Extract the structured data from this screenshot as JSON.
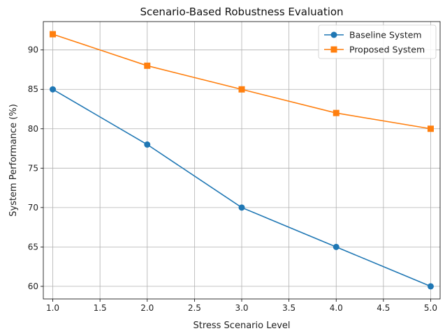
{
  "chart_data": {
    "type": "line",
    "title": "Scenario-Based Robustness Evaluation",
    "xlabel": "Stress Scenario Level",
    "ylabel": "System Performance (%)",
    "x": [
      1.0,
      2.0,
      3.0,
      4.0,
      5.0
    ],
    "xlim": [
      0.9,
      5.1
    ],
    "ylim": [
      58.4,
      93.6
    ],
    "xticks": [
      "1.0",
      "1.5",
      "2.0",
      "2.5",
      "3.0",
      "3.5",
      "4.0",
      "4.5",
      "5.0"
    ],
    "yticks": [
      "60",
      "65",
      "70",
      "75",
      "80",
      "85",
      "90"
    ],
    "grid": true,
    "legend_position": "top-right",
    "series": [
      {
        "name": "Baseline System",
        "values": [
          85,
          78,
          70,
          65,
          60
        ],
        "color": "#1f77b4",
        "marker": "circle"
      },
      {
        "name": "Proposed System",
        "values": [
          92,
          88,
          85,
          82,
          80
        ],
        "color": "#ff7f0e",
        "marker": "square"
      }
    ]
  }
}
